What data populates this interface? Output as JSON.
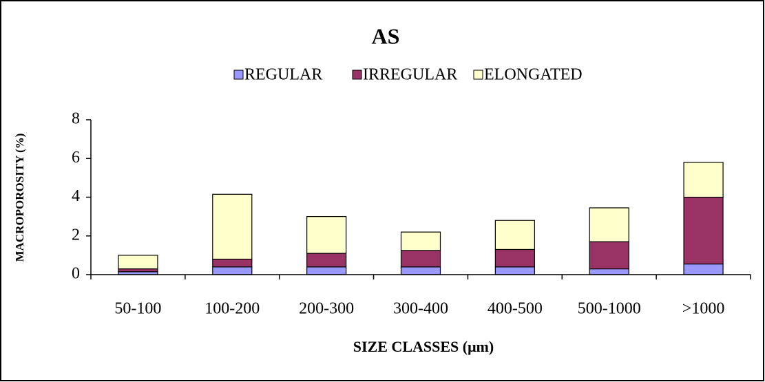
{
  "chart_data": {
    "type": "stacked_bar",
    "title": "AS",
    "x_label": "SIZE CLASSES (μm)",
    "y_label": "MACROPOROSITY (%)",
    "categories": [
      "50-100",
      "100-200",
      "200-300",
      "300-400",
      "400-500",
      "500-1000",
      ">1000"
    ],
    "series": [
      {
        "name": "REGULAR",
        "color": "#9999ff",
        "values": [
          0.15,
          0.4,
          0.4,
          0.4,
          0.4,
          0.3,
          0.55
        ]
      },
      {
        "name": "IRREGULAR",
        "color": "#993366",
        "values": [
          0.15,
          0.4,
          0.7,
          0.85,
          0.9,
          1.4,
          3.45
        ]
      },
      {
        "name": "ELONGATED",
        "color": "#ffffcc",
        "values": [
          0.7,
          3.35,
          1.9,
          0.95,
          1.5,
          1.75,
          1.8
        ]
      }
    ],
    "ylim": [
      0,
      8
    ],
    "yticks": [
      0,
      2,
      4,
      6,
      8
    ],
    "legend": "top",
    "grid": false
  }
}
